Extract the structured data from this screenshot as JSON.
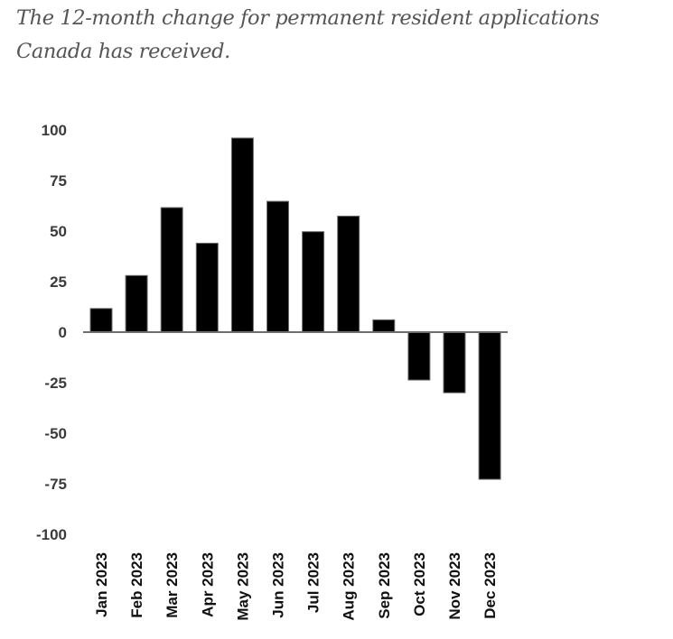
{
  "header": {
    "subtitle": "The 12-month change for permanent resident applications Canada has received."
  },
  "chart_data": {
    "type": "bar",
    "title": "",
    "xlabel": "",
    "ylabel": "",
    "categories": [
      "Jan 2023",
      "Feb 2023",
      "Mar 2023",
      "Apr 2023",
      "May 2023",
      "Jun 2023",
      "Jul 2023",
      "Aug 2023",
      "Sep 2023",
      "Oct 2023",
      "Nov 2023",
      "Dec 2023"
    ],
    "values": [
      11.7,
      28,
      61.6,
      44,
      96,
      64.7,
      49.7,
      57.4,
      6.1,
      -23.7,
      -30,
      -72.8
    ],
    "ylim": [
      -100,
      100
    ],
    "yticks": [
      100,
      75,
      50,
      25,
      0,
      -25,
      -50,
      -75,
      -100
    ],
    "grid": false,
    "legend": "none",
    "bar_color": "#000000"
  }
}
